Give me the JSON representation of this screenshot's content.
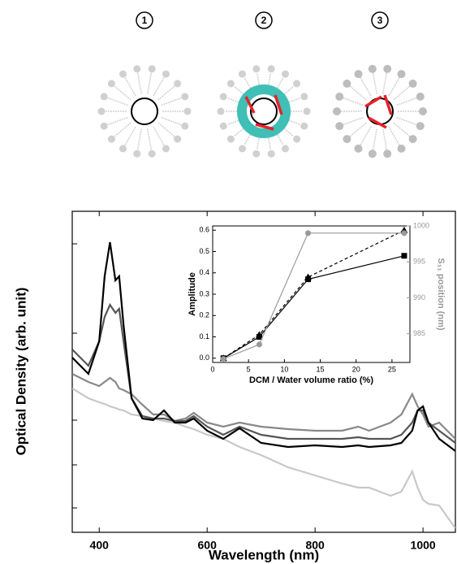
{
  "diagram": {
    "labels": [
      "1",
      "2",
      "3"
    ]
  },
  "chart_data": [
    {
      "type": "line",
      "xlabel": "Wavelength (nm)",
      "ylabel": "Optical Density (arb. unit)",
      "x": [
        350,
        380,
        400,
        410,
        420,
        430,
        437,
        445,
        460,
        480,
        500,
        520,
        540,
        560,
        575,
        600,
        630,
        660,
        700,
        750,
        800,
        850,
        880,
        900,
        940,
        960,
        980,
        990,
        1000,
        1010,
        1030,
        1060
      ],
      "series": [
        {
          "color": "#c8c8c8",
          "values": [
            1.77,
            1.65,
            1.6,
            1.58,
            1.55,
            1.53,
            1.51,
            1.5,
            1.45,
            1.43,
            1.4,
            1.37,
            1.35,
            1.3,
            1.27,
            1.2,
            1.15,
            1.05,
            0.95,
            0.8,
            0.7,
            0.6,
            0.55,
            0.55,
            0.45,
            0.5,
            0.75,
            0.55,
            0.4,
            0.35,
            0.33,
            0.05
          ]
        },
        {
          "color": "#888888",
          "values": [
            1.95,
            1.85,
            1.8,
            1.85,
            1.9,
            1.85,
            1.77,
            1.75,
            1.7,
            1.57,
            1.45,
            1.45,
            1.37,
            1.4,
            1.47,
            1.35,
            1.3,
            1.35,
            1.3,
            1.27,
            1.25,
            1.25,
            1.3,
            1.25,
            1.35,
            1.45,
            1.7,
            1.55,
            1.45,
            1.3,
            1.35,
            1.15
          ]
        },
        {
          "color": "#555555",
          "values": [
            2.25,
            2.05,
            2.35,
            2.65,
            2.8,
            2.7,
            2.75,
            2.35,
            1.65,
            1.43,
            1.4,
            1.4,
            1.37,
            1.37,
            1.43,
            1.3,
            1.2,
            1.3,
            1.2,
            1.15,
            1.15,
            1.15,
            1.17,
            1.15,
            1.15,
            1.2,
            1.35,
            1.5,
            1.5,
            1.35,
            1.25,
            1.1
          ]
        },
        {
          "color": "#000000",
          "values": [
            2.15,
            1.95,
            2.35,
            3.15,
            3.57,
            3.1,
            3.15,
            2.55,
            1.65,
            1.4,
            1.38,
            1.5,
            1.35,
            1.35,
            1.4,
            1.25,
            1.15,
            1.28,
            1.1,
            1.05,
            1.07,
            1.05,
            1.07,
            1.05,
            1.07,
            1.1,
            1.25,
            1.5,
            1.55,
            1.35,
            1.15,
            1.0
          ]
        }
      ],
      "xlim": [
        350,
        1060
      ],
      "xticks": [
        400,
        600,
        800,
        1000
      ],
      "ylim": [
        0,
        3.95
      ],
      "yticks": [
        0.3,
        0.83,
        1.38,
        2.45,
        3.55
      ]
    },
    {
      "type": "line",
      "xlabel": "DCM / Water volume ratio (%)",
      "ylabel": "Amplitude",
      "y2label": "S₁₁ position (nm)",
      "x": [
        1.5,
        6.5,
        13.3,
        26.7
      ],
      "series": [
        {
          "color": "#000000",
          "marker": "square",
          "dashed": false,
          "values": [
            0.0,
            0.1,
            0.37,
            0.48
          ]
        },
        {
          "color": "#000000",
          "marker": "triangle",
          "dashed": true,
          "values": [
            0.0,
            0.11,
            0.38,
            0.6
          ]
        },
        {
          "color": "#999999",
          "marker": "circle",
          "dashed": false,
          "axis": "y2",
          "values": [
            981.5,
            983.5,
            999,
            999
          ]
        }
      ],
      "xlim": [
        0,
        27.5
      ],
      "xticks": [
        0,
        5,
        10,
        15,
        20,
        25
      ],
      "ylim": [
        -0.02,
        0.62
      ],
      "yticks": [
        {
          "value": 0,
          "label": "0.0"
        },
        0.1,
        0.2,
        0.3,
        0.4,
        0.5,
        0.6
      ],
      "y2lim": [
        981,
        1000
      ],
      "y2ticks": [
        985,
        990,
        995,
        1000
      ]
    }
  ]
}
